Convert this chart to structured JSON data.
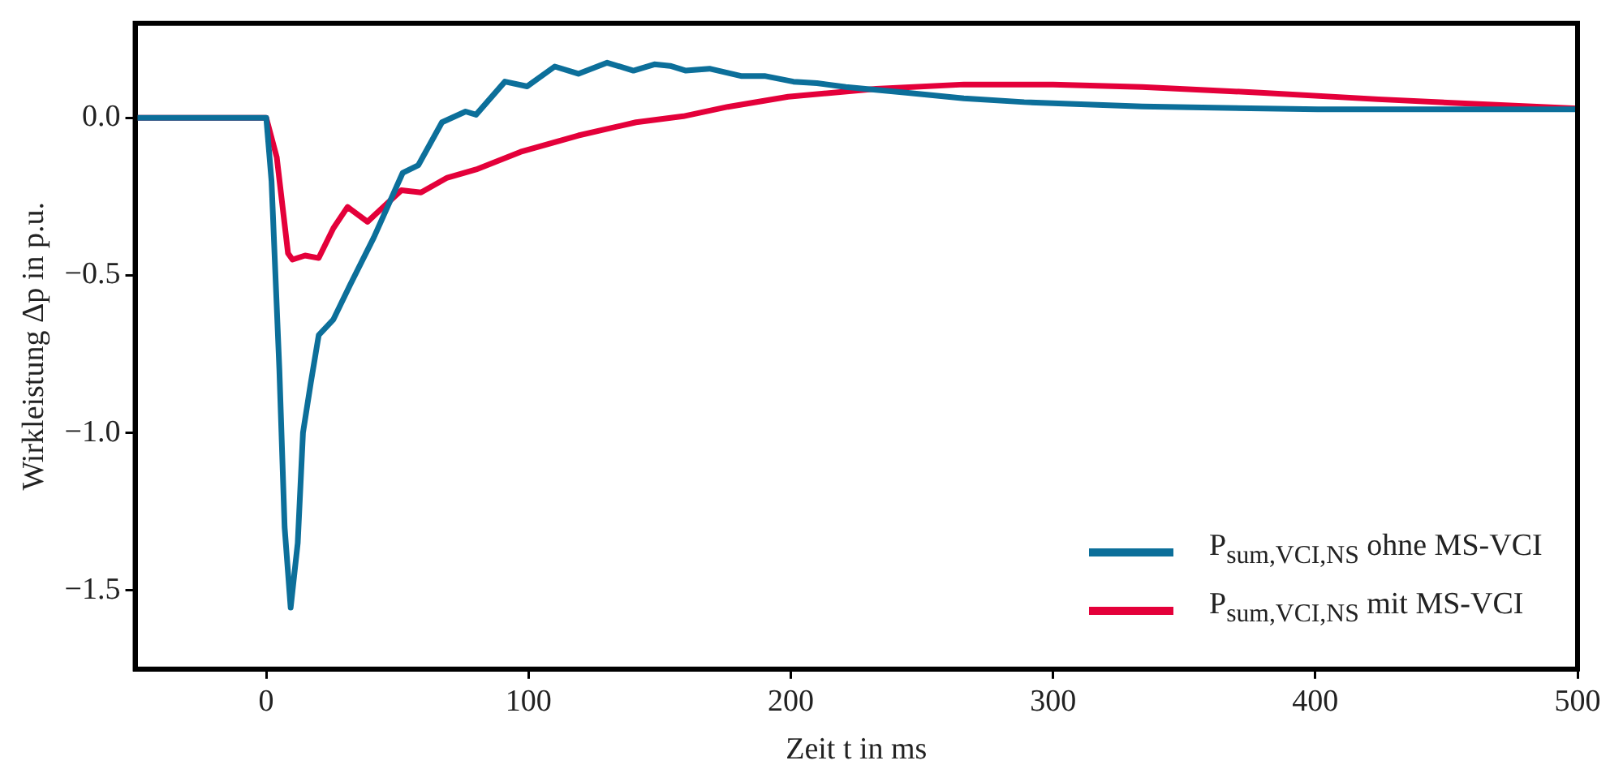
{
  "chart_data": {
    "type": "line",
    "xlabel": "Zeit t in ms",
    "ylabel": "Wirkleistung Δp in p.u.",
    "xlim": [
      -50,
      500
    ],
    "ylim": [
      -1.75,
      0.3
    ],
    "xticks": [
      0,
      100,
      200,
      300,
      400,
      500
    ],
    "yticks": [
      {
        "value": -1.5,
        "label": "−1.5"
      },
      {
        "value": -1,
        "label": "−1.0"
      },
      {
        "value": -0.5,
        "label": "−0.5"
      },
      {
        "value": 0,
        "label": "0.0"
      }
    ],
    "grid": false,
    "legend": "bottom right",
    "line_style": "solid",
    "marker": "none",
    "series": [
      {
        "name": "P$_{sum,VCI,NS}$ ohne MS-VCI",
        "color": "#0c6f9a",
        "x": [
          -50,
          0,
          2,
          5,
          7,
          9.3,
          12,
          14,
          17,
          20,
          25.6,
          32,
          41,
          52,
          58,
          67,
          76,
          80,
          91,
          99.5,
          110,
          119,
          130,
          140,
          148,
          154,
          160,
          169,
          181,
          190,
          201,
          210,
          221,
          244,
          266,
          289,
          334,
          401,
          500
        ],
        "values": [
          0,
          0,
          -0.2,
          -0.8,
          -1.3,
          -1.555,
          -1.35,
          -1.0,
          -0.84,
          -0.69,
          -0.64,
          -0.53,
          -0.38,
          -0.175,
          -0.15,
          -0.014,
          0.02,
          0.01,
          0.115,
          0.1,
          0.163,
          0.14,
          0.175,
          0.15,
          0.17,
          0.165,
          0.15,
          0.156,
          0.133,
          0.133,
          0.115,
          0.11,
          0.098,
          0.08,
          0.062,
          0.05,
          0.036,
          0.027,
          0.027
        ]
      },
      {
        "name": "P$_{sum,VCI,NS}$ mit MS-VCI",
        "color": "#e4003a",
        "x": [
          -50,
          0,
          4,
          8.3,
          10,
          14.8,
          20,
          25.6,
          31,
          38.6,
          45,
          51.5,
          59,
          69,
          80,
          97,
          119,
          141,
          159,
          176,
          199,
          232.5,
          266,
          300,
          334,
          379,
          424,
          469,
          500
        ],
        "values": [
          0,
          0,
          -0.125,
          -0.43,
          -0.45,
          -0.437,
          -0.445,
          -0.35,
          -0.283,
          -0.33,
          -0.28,
          -0.23,
          -0.237,
          -0.19,
          -0.164,
          -0.108,
          -0.056,
          -0.014,
          0.005,
          0.035,
          0.067,
          0.092,
          0.106,
          0.106,
          0.098,
          0.08,
          0.059,
          0.041,
          0.03
        ]
      }
    ]
  }
}
